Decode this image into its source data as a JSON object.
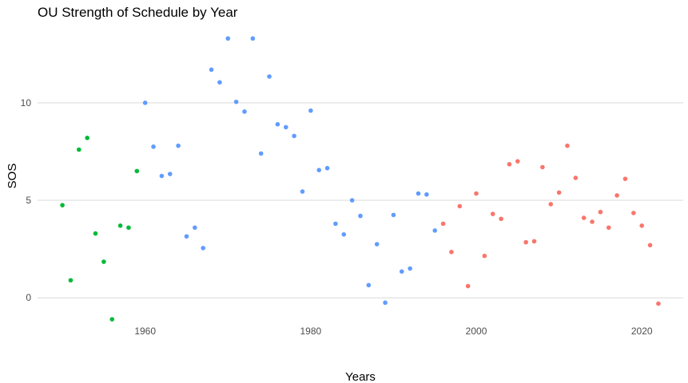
{
  "chart_data": {
    "type": "scatter",
    "title": "OU Strength of Schedule by Year",
    "xlabel": "Years",
    "ylabel": "SOS",
    "xlim": [
      1947,
      2025
    ],
    "ylim": [
      -1.3,
      13.8
    ],
    "x_ticks": [
      1960,
      1980,
      2000,
      2020
    ],
    "y_ticks": [
      0,
      5,
      10
    ],
    "grid": "horizontal major lines only",
    "legend": "none",
    "series": [
      {
        "color": "#00ba38",
        "points": [
          [
            1950,
            4.75
          ],
          [
            1951,
            0.9
          ],
          [
            1952,
            7.6
          ],
          [
            1953,
            8.2
          ],
          [
            1954,
            3.3
          ],
          [
            1955,
            1.85
          ],
          [
            1956,
            -1.1
          ],
          [
            1957,
            3.7
          ],
          [
            1958,
            3.6
          ],
          [
            1959,
            6.5
          ]
        ]
      },
      {
        "color": "#619cff",
        "points": [
          [
            1960,
            10.0
          ],
          [
            1961,
            7.75
          ],
          [
            1962,
            6.25
          ],
          [
            1963,
            6.35
          ],
          [
            1964,
            7.8
          ],
          [
            1965,
            3.15
          ],
          [
            1966,
            3.6
          ],
          [
            1967,
            2.55
          ],
          [
            1968,
            11.7
          ],
          [
            1969,
            11.05
          ],
          [
            1970,
            13.3
          ],
          [
            1971,
            10.05
          ],
          [
            1972,
            9.55
          ],
          [
            1973,
            13.3
          ],
          [
            1974,
            7.4
          ],
          [
            1975,
            11.35
          ],
          [
            1976,
            8.9
          ],
          [
            1977,
            8.75
          ],
          [
            1978,
            8.3
          ],
          [
            1979,
            5.45
          ],
          [
            1980,
            9.6
          ],
          [
            1981,
            6.55
          ],
          [
            1982,
            6.65
          ],
          [
            1983,
            3.8
          ],
          [
            1984,
            3.25
          ],
          [
            1985,
            5.0
          ],
          [
            1986,
            4.2
          ],
          [
            1987,
            0.65
          ],
          [
            1988,
            2.75
          ],
          [
            1989,
            -0.25
          ],
          [
            1990,
            4.25
          ],
          [
            1991,
            1.35
          ],
          [
            1992,
            1.5
          ],
          [
            1993,
            5.35
          ],
          [
            1994,
            5.3
          ],
          [
            1995,
            3.45
          ]
        ]
      },
      {
        "color": "#f8766d",
        "points": [
          [
            1996,
            3.8
          ],
          [
            1997,
            2.35
          ],
          [
            1998,
            4.7
          ],
          [
            1999,
            0.6
          ],
          [
            2000,
            5.35
          ],
          [
            2001,
            2.15
          ],
          [
            2002,
            4.3
          ],
          [
            2003,
            4.05
          ],
          [
            2004,
            6.85
          ],
          [
            2005,
            7.0
          ],
          [
            2006,
            2.85
          ],
          [
            2007,
            2.9
          ],
          [
            2008,
            6.7
          ],
          [
            2009,
            4.8
          ],
          [
            2010,
            5.4
          ],
          [
            2011,
            7.8
          ],
          [
            2012,
            6.15
          ],
          [
            2013,
            4.1
          ],
          [
            2014,
            3.9
          ],
          [
            2015,
            4.4
          ],
          [
            2016,
            3.6
          ],
          [
            2017,
            5.25
          ],
          [
            2018,
            6.1
          ],
          [
            2019,
            4.35
          ],
          [
            2020,
            3.7
          ],
          [
            2021,
            2.7
          ],
          [
            2022,
            -0.3
          ]
        ]
      }
    ]
  }
}
